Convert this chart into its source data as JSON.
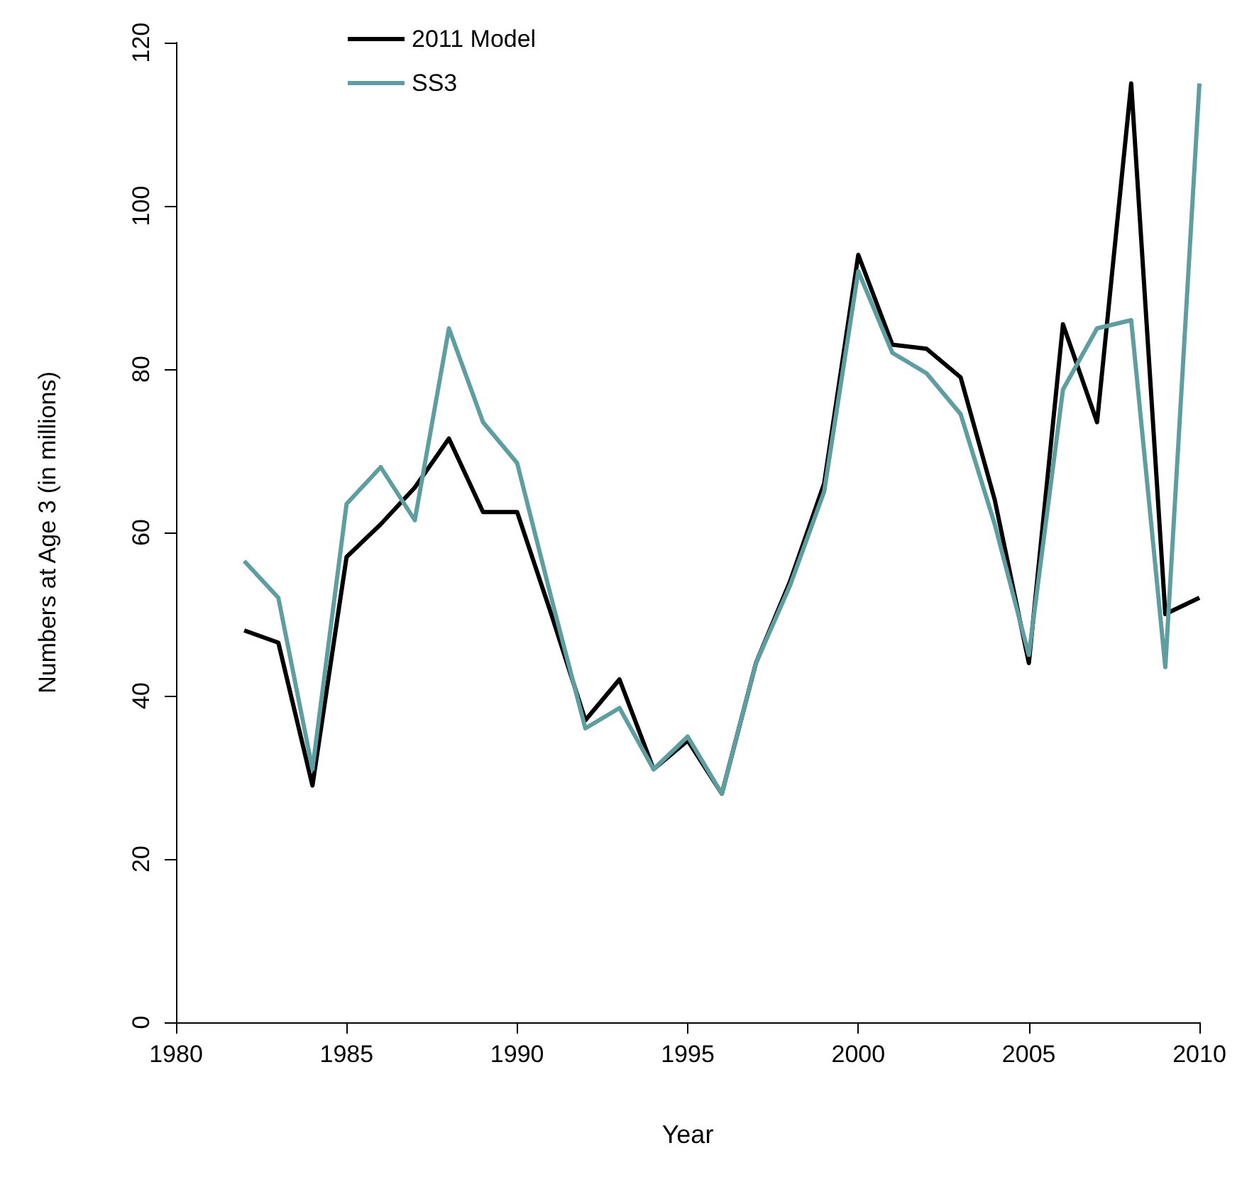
{
  "chart_data": {
    "type": "line",
    "xlabel": "Year",
    "ylabel": "Numbers at Age 3 (in millions)",
    "x": [
      1982,
      1983,
      1984,
      1985,
      1986,
      1987,
      1988,
      1989,
      1990,
      1991,
      1992,
      1993,
      1994,
      1995,
      1996,
      1997,
      1998,
      1999,
      2000,
      2001,
      2002,
      2003,
      2004,
      2005,
      2006,
      2007,
      2008,
      2009,
      2010
    ],
    "series": [
      {
        "name": "2011 Model",
        "color": "#000000",
        "values": [
          48,
          46.5,
          29,
          57,
          61,
          65.5,
          71.5,
          62.5,
          62.5,
          50,
          37,
          42,
          31,
          34.5,
          28,
          44,
          54,
          66,
          94,
          83,
          82.5,
          79,
          64,
          44,
          85.5,
          73.5,
          115,
          50,
          52
        ]
      },
      {
        "name": "SS3",
        "color": "#5f9ea0",
        "values": [
          56.5,
          52,
          31,
          63.5,
          68,
          61.5,
          85,
          73.5,
          68.5,
          52,
          36,
          38.5,
          31,
          35,
          28,
          44,
          53.5,
          65,
          92,
          82,
          79.5,
          74.5,
          61,
          45,
          77.5,
          85,
          86,
          43.5,
          115
        ]
      }
    ],
    "xlim": [
      1980,
      2010
    ],
    "xticks": [
      1980,
      1985,
      1990,
      1995,
      2000,
      2005,
      2010
    ],
    "ylim": [
      0,
      120
    ],
    "yticks": [
      0,
      20,
      40,
      60,
      80,
      100,
      120
    ],
    "grid": false,
    "legend": "top left",
    "marker": "none",
    "line_style": "solid"
  }
}
